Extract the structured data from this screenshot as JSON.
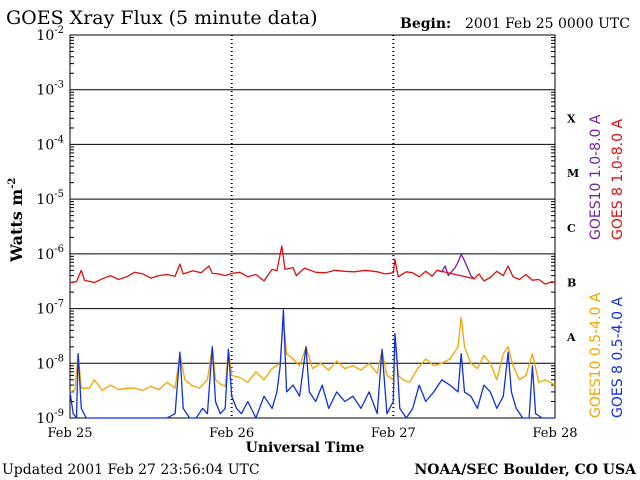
{
  "chart_data": {
    "type": "line",
    "title": "GOES Xray Flux (5 minute data)",
    "begin_label": "Begin:",
    "begin_value": "2001 Feb 25 0000 UTC",
    "ylabel": "Watts m",
    "ylabel_sup": "-2",
    "xlabel": "Universal Time",
    "y_scale": "log",
    "ylim": [
      1e-09,
      0.01
    ],
    "y_ticks": [
      {
        "base": "10",
        "exp": "-2",
        "value": 0.01
      },
      {
        "base": "10",
        "exp": "-3",
        "value": 0.001
      },
      {
        "base": "10",
        "exp": "-4",
        "value": 0.0001
      },
      {
        "base": "10",
        "exp": "-5",
        "value": 1e-05
      },
      {
        "base": "10",
        "exp": "-6",
        "value": 1e-06
      },
      {
        "base": "10",
        "exp": "-7",
        "value": 1e-07
      },
      {
        "base": "10",
        "exp": "-8",
        "value": 1e-08
      },
      {
        "base": "10",
        "exp": "-9",
        "value": 1e-09
      }
    ],
    "x_range_days": [
      0,
      3
    ],
    "x_ticks": [
      {
        "label": "Feb 25",
        "day": 0
      },
      {
        "label": "Feb 26",
        "day": 1
      },
      {
        "label": "Feb 27",
        "day": 2
      },
      {
        "label": "Feb 28",
        "day": 3
      }
    ],
    "flare_classes": [
      {
        "label": "X",
        "value": 0.0003
      },
      {
        "label": "M",
        "value": 3e-05
      },
      {
        "label": "C",
        "value": 3e-06
      },
      {
        "label": "B",
        "value": 3e-07
      },
      {
        "label": "A",
        "value": 3e-08
      }
    ],
    "grid": true,
    "legend_position": "right",
    "series": [
      {
        "name": "GOES10 1.0-8.0 A",
        "color": "#7a1fa0",
        "points": [
          [
            2.27,
            5e-07
          ],
          [
            2.3,
            4.7e-07
          ],
          [
            2.32,
            6e-07
          ],
          [
            2.34,
            4e-07
          ],
          [
            2.38,
            5.5e-07
          ],
          [
            2.4,
            7e-07
          ],
          [
            2.42,
            9.8e-07
          ],
          [
            2.44,
            7.5e-07
          ],
          [
            2.46,
            5.5e-07
          ],
          [
            2.48,
            4e-07
          ],
          [
            2.5,
            3.5e-07
          ]
        ]
      },
      {
        "name": "GOES 8 1.0-8.0 A",
        "color": "#dd1111",
        "points": [
          [
            0.0,
            3e-07
          ],
          [
            0.04,
            3.1e-07
          ],
          [
            0.07,
            5e-07
          ],
          [
            0.09,
            3.3e-07
          ],
          [
            0.15,
            3e-07
          ],
          [
            0.2,
            3.5e-07
          ],
          [
            0.25,
            4e-07
          ],
          [
            0.3,
            3.4e-07
          ],
          [
            0.35,
            3.8e-07
          ],
          [
            0.4,
            4.6e-07
          ],
          [
            0.45,
            4.3e-07
          ],
          [
            0.5,
            3.6e-07
          ],
          [
            0.55,
            4e-07
          ],
          [
            0.6,
            4.2e-07
          ],
          [
            0.65,
            3.9e-07
          ],
          [
            0.68,
            6.5e-07
          ],
          [
            0.7,
            4.3e-07
          ],
          [
            0.76,
            4.9e-07
          ],
          [
            0.81,
            4.5e-07
          ],
          [
            0.86,
            6e-07
          ],
          [
            0.88,
            4.4e-07
          ],
          [
            0.92,
            4.3e-07
          ],
          [
            0.96,
            4e-07
          ],
          [
            1.0,
            4.4e-07
          ],
          [
            1.05,
            4.6e-07
          ],
          [
            1.1,
            3.8e-07
          ],
          [
            1.15,
            4.2e-07
          ],
          [
            1.2,
            3.2e-07
          ],
          [
            1.25,
            5.2e-07
          ],
          [
            1.28,
            4.9e-07
          ],
          [
            1.31,
            1.4e-06
          ],
          [
            1.33,
            5.2e-07
          ],
          [
            1.38,
            5.6e-07
          ],
          [
            1.4,
            4e-07
          ],
          [
            1.45,
            5.5e-07
          ],
          [
            1.52,
            4.6e-07
          ],
          [
            1.58,
            4.5e-07
          ],
          [
            1.64,
            5e-07
          ],
          [
            1.7,
            4.8e-07
          ],
          [
            1.76,
            4.7e-07
          ],
          [
            1.83,
            5e-07
          ],
          [
            1.9,
            4.7e-07
          ],
          [
            1.95,
            4.3e-07
          ],
          [
            2.0,
            4.5e-07
          ],
          [
            2.01,
            8e-07
          ],
          [
            2.03,
            3.8e-07
          ],
          [
            2.08,
            4.7e-07
          ],
          [
            2.12,
            4.5e-07
          ],
          [
            2.16,
            3.8e-07
          ],
          [
            2.2,
            4.8e-07
          ],
          [
            2.24,
            3.9e-07
          ],
          [
            2.27,
            5e-07
          ],
          [
            2.5,
            3.5e-07
          ],
          [
            2.53,
            4.3e-07
          ],
          [
            2.56,
            3.2e-07
          ],
          [
            2.6,
            3.7e-07
          ],
          [
            2.64,
            4.8e-07
          ],
          [
            2.68,
            4e-07
          ],
          [
            2.71,
            6e-07
          ],
          [
            2.74,
            3.8e-07
          ],
          [
            2.78,
            3.4e-07
          ],
          [
            2.82,
            4.2e-07
          ],
          [
            2.86,
            3.3e-07
          ],
          [
            2.9,
            3.4e-07
          ],
          [
            2.94,
            2.8e-07
          ],
          [
            2.98,
            3.1e-07
          ],
          [
            3.0,
            3e-07
          ]
        ]
      },
      {
        "name": "GOES10 0.5-4.0 A",
        "color": "#f5a400",
        "points": [
          [
            0.0,
            3e-09
          ],
          [
            0.03,
            3.2e-09
          ],
          [
            0.05,
            1.5e-08
          ],
          [
            0.07,
            3.5e-09
          ],
          [
            0.12,
            3.5e-09
          ],
          [
            0.15,
            5e-09
          ],
          [
            0.2,
            3.2e-09
          ],
          [
            0.25,
            4e-09
          ],
          [
            0.3,
            3.3e-09
          ],
          [
            0.35,
            3.5e-09
          ],
          [
            0.4,
            3.5e-09
          ],
          [
            0.45,
            3.2e-09
          ],
          [
            0.5,
            3.8e-09
          ],
          [
            0.55,
            3.3e-09
          ],
          [
            0.6,
            4.5e-09
          ],
          [
            0.65,
            3.5e-09
          ],
          [
            0.68,
            1.5e-08
          ],
          [
            0.71,
            5e-09
          ],
          [
            0.75,
            4e-09
          ],
          [
            0.8,
            3.5e-09
          ],
          [
            0.85,
            5e-09
          ],
          [
            0.88,
            2e-08
          ],
          [
            0.9,
            5e-09
          ],
          [
            0.93,
            4.2e-09
          ],
          [
            0.96,
            3.8e-09
          ],
          [
            0.98,
            1.8e-08
          ],
          [
            1.0,
            6e-09
          ],
          [
            1.05,
            5.5e-09
          ],
          [
            1.1,
            4.5e-09
          ],
          [
            1.15,
            7e-09
          ],
          [
            1.2,
            5e-09
          ],
          [
            1.25,
            8e-09
          ],
          [
            1.3,
            1e-08
          ],
          [
            1.32,
            6.5e-08
          ],
          [
            1.34,
            1.5e-08
          ],
          [
            1.38,
            1.2e-08
          ],
          [
            1.42,
            9e-09
          ],
          [
            1.46,
            2e-08
          ],
          [
            1.5,
            8e-09
          ],
          [
            1.55,
            1e-08
          ],
          [
            1.6,
            7.5e-09
          ],
          [
            1.65,
            1.1e-08
          ],
          [
            1.7,
            8e-09
          ],
          [
            1.75,
            9e-09
          ],
          [
            1.8,
            7.5e-09
          ],
          [
            1.85,
            1e-08
          ],
          [
            1.9,
            6.5e-09
          ],
          [
            1.93,
            1.7e-08
          ],
          [
            1.96,
            6e-09
          ],
          [
            2.0,
            5e-09
          ],
          [
            2.01,
            3e-08
          ],
          [
            2.03,
            6e-09
          ],
          [
            2.06,
            5e-09
          ],
          [
            2.1,
            4.5e-09
          ],
          [
            2.15,
            8e-09
          ],
          [
            2.2,
            1.2e-08
          ],
          [
            2.25,
            9e-09
          ],
          [
            2.3,
            1e-08
          ],
          [
            2.35,
            1.2e-08
          ],
          [
            2.4,
            2e-08
          ],
          [
            2.42,
            7e-08
          ],
          [
            2.44,
            2e-08
          ],
          [
            2.48,
            1e-08
          ],
          [
            2.52,
            8e-09
          ],
          [
            2.56,
            1.4e-08
          ],
          [
            2.6,
            1e-08
          ],
          [
            2.64,
            5e-09
          ],
          [
            2.68,
            1.5e-08
          ],
          [
            2.71,
            2e-08
          ],
          [
            2.74,
            9e-09
          ],
          [
            2.78,
            5e-09
          ],
          [
            2.82,
            6e-09
          ],
          [
            2.86,
            1.5e-08
          ],
          [
            2.9,
            4.5e-09
          ],
          [
            2.94,
            5e-09
          ],
          [
            3.0,
            4e-09
          ]
        ]
      },
      {
        "name": "GOES 8 0.5-4.0 A",
        "color": "#1030e0",
        "points": [
          [
            0.0,
            3e-09
          ],
          [
            0.02,
            1.2e-09
          ],
          [
            0.04,
            1e-09
          ],
          [
            0.05,
            1.5e-08
          ],
          [
            0.07,
            1.5e-09
          ],
          [
            0.1,
            1e-09
          ],
          [
            0.14,
            1e-09
          ],
          [
            0.18,
            9e-10
          ],
          [
            0.22,
            1e-09
          ],
          [
            0.28,
            9e-10
          ],
          [
            0.34,
            1e-09
          ],
          [
            0.4,
            1e-09
          ],
          [
            0.45,
            9e-10
          ],
          [
            0.5,
            1e-09
          ],
          [
            0.55,
            1e-09
          ],
          [
            0.6,
            9e-10
          ],
          [
            0.65,
            1.2e-09
          ],
          [
            0.68,
            1.6e-08
          ],
          [
            0.7,
            1.5e-09
          ],
          [
            0.74,
            1e-09
          ],
          [
            0.78,
            1e-09
          ],
          [
            0.82,
            1.5e-09
          ],
          [
            0.85,
            1.2e-09
          ],
          [
            0.88,
            2e-08
          ],
          [
            0.9,
            2e-09
          ],
          [
            0.93,
            1.2e-09
          ],
          [
            0.96,
            1.5e-09
          ],
          [
            0.98,
            1.8e-08
          ],
          [
            1.0,
            2.5e-09
          ],
          [
            1.03,
            1.5e-09
          ],
          [
            1.06,
            1.2e-09
          ],
          [
            1.1,
            2e-09
          ],
          [
            1.15,
            1e-09
          ],
          [
            1.2,
            2.5e-09
          ],
          [
            1.25,
            1.5e-09
          ],
          [
            1.28,
            3e-09
          ],
          [
            1.3,
            9e-09
          ],
          [
            1.32,
            9.5e-08
          ],
          [
            1.34,
            3e-09
          ],
          [
            1.38,
            4e-09
          ],
          [
            1.42,
            2.5e-09
          ],
          [
            1.46,
            2e-08
          ],
          [
            1.48,
            3e-09
          ],
          [
            1.52,
            2e-09
          ],
          [
            1.56,
            4e-09
          ],
          [
            1.6,
            1.5e-09
          ],
          [
            1.65,
            3e-09
          ],
          [
            1.7,
            2e-09
          ],
          [
            1.75,
            2.5e-09
          ],
          [
            1.8,
            1.5e-09
          ],
          [
            1.85,
            3e-09
          ],
          [
            1.9,
            1.2e-09
          ],
          [
            1.93,
            1.8e-08
          ],
          [
            1.96,
            1.2e-09
          ],
          [
            2.0,
            2e-09
          ],
          [
            2.01,
            3.5e-08
          ],
          [
            2.02,
            1.5e-08
          ],
          [
            2.04,
            1.5e-09
          ],
          [
            2.08,
            1e-09
          ],
          [
            2.12,
            1.5e-09
          ],
          [
            2.16,
            4e-09
          ],
          [
            2.2,
            2e-09
          ],
          [
            2.25,
            3e-09
          ],
          [
            2.3,
            5e-09
          ],
          [
            2.35,
            4e-09
          ],
          [
            2.4,
            3e-09
          ],
          [
            2.42,
            1.5e-08
          ],
          [
            2.44,
            3e-09
          ],
          [
            2.48,
            2.5e-09
          ],
          [
            2.52,
            1.5e-09
          ],
          [
            2.56,
            4e-09
          ],
          [
            2.6,
            3e-09
          ],
          [
            2.64,
            1.5e-09
          ],
          [
            2.68,
            2.5e-09
          ],
          [
            2.71,
            1.6e-08
          ],
          [
            2.73,
            3e-09
          ],
          [
            2.76,
            1.5e-09
          ],
          [
            2.8,
            9e-10
          ],
          [
            2.84,
            1e-09
          ],
          [
            2.86,
            9e-09
          ],
          [
            2.88,
            1.2e-09
          ],
          [
            2.92,
            9e-10
          ],
          [
            2.96,
            1e-09
          ],
          [
            3.0,
            1e-09
          ]
        ]
      }
    ]
  },
  "footer": {
    "updated": "Updated 2001 Feb 27 23:56:04 UTC",
    "credit": "NOAA/SEC Boulder, CO USA"
  }
}
